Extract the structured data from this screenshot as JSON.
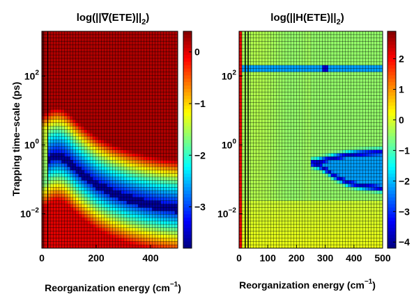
{
  "chart_data": [
    {
      "type": "heatmap",
      "title": "log(||∇(ETE)||",
      "title_subscript": "2",
      "title_close": ")",
      "xlabel": "Reorganization energy (cm",
      "xlabel_superscript": "−1",
      "xlabel_close": ")",
      "ylabel": "Trapping time−scale (ps)",
      "x_range": [
        0,
        500
      ],
      "x_ticks": [
        0,
        200,
        400
      ],
      "x_tick_labels": [
        "0",
        "200",
        "400"
      ],
      "y_scale": "log",
      "y_range": [
        0.001,
        2000
      ],
      "y_ticks": [
        0.01,
        1,
        100
      ],
      "y_tick_base": "10",
      "y_tick_exponents": [
        "−2",
        "0",
        "2"
      ],
      "colorbar_range": [
        -3.8,
        0.4
      ],
      "colorbar_ticks": [
        0,
        -1,
        -2,
        -3
      ],
      "colorbar_tick_labels": [
        "0",
        "−1",
        "−2",
        "−3"
      ],
      "colormap": "jet",
      "grid": "on",
      "vertical_lines_x": [
        5,
        22
      ],
      "valley_curve": [
        [
          0,
          0.3
        ],
        [
          20,
          0.35
        ],
        [
          40,
          0.45
        ],
        [
          60,
          0.47
        ],
        [
          80,
          0.42
        ],
        [
          100,
          0.32
        ],
        [
          120,
          0.22
        ],
        [
          160,
          0.12
        ],
        [
          200,
          0.07
        ],
        [
          260,
          0.04
        ],
        [
          320,
          0.027
        ],
        [
          380,
          0.02
        ],
        [
          440,
          0.016
        ],
        [
          500,
          0.014
        ]
      ]
    },
    {
      "type": "heatmap",
      "title": "log(||H(ETE)||",
      "title_subscript": "2",
      "title_close": ")",
      "xlabel": "Reorganization energy (cm",
      "xlabel_superscript": "−1",
      "xlabel_close": ")",
      "ylabel": "",
      "x_range": [
        0,
        500
      ],
      "x_ticks": [
        0,
        100,
        200,
        300,
        400,
        500
      ],
      "x_tick_labels": [
        "0",
        "100",
        "200",
        "300",
        "400",
        "500"
      ],
      "y_scale": "log",
      "y_range": [
        0.001,
        2000
      ],
      "y_ticks": [
        0.01,
        1,
        100
      ],
      "y_tick_base": "10",
      "y_tick_exponents": [
        "−2",
        "0",
        "2"
      ],
      "colorbar_range": [
        -4.2,
        2.9
      ],
      "colorbar_ticks": [
        2,
        1,
        0,
        -1,
        -2,
        -3,
        -4
      ],
      "colorbar_tick_labels": [
        "2",
        "1",
        "0",
        "−1",
        "−2",
        "−3",
        "−4"
      ],
      "colormap": "jet",
      "grid": "on",
      "vertical_lines_x": [
        22,
        32
      ],
      "horizontal_band_y": 150,
      "valley_curve": [
        [
          250,
          0.3
        ],
        [
          280,
          0.25
        ],
        [
          300,
          0.2
        ],
        [
          330,
          0.13
        ],
        [
          380,
          0.08
        ],
        [
          430,
          0.065
        ],
        [
          480,
          0.058
        ],
        [
          500,
          0.055
        ]
      ],
      "valley_upper_curve": [
        [
          500,
          0.6
        ],
        [
          460,
          0.58
        ],
        [
          420,
          0.55
        ],
        [
          380,
          0.5
        ],
        [
          340,
          0.43
        ],
        [
          300,
          0.36
        ],
        [
          270,
          0.31
        ],
        [
          250,
          0.3
        ]
      ]
    }
  ]
}
